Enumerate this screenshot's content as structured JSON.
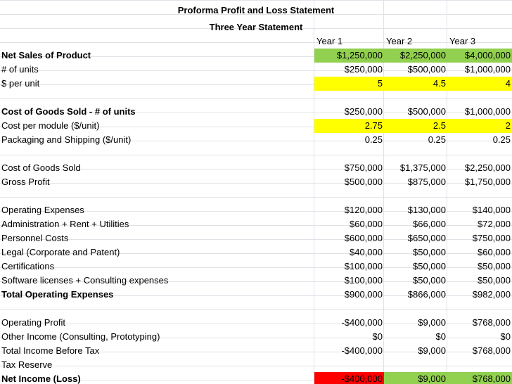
{
  "title": "Proforma Profit and Loss Statement",
  "subtitle": "Three Year Statement",
  "years": [
    "Year 1",
    "Year 2",
    "Year 3"
  ],
  "rows": [
    {
      "label": "Net Sales of Product",
      "bold": true,
      "values": [
        "$1,250,000",
        "$2,250,000",
        "$4,000,000"
      ],
      "fills": [
        "#92d050",
        "#92d050",
        "#92d050"
      ]
    },
    {
      "label": "# of units",
      "bold": false,
      "values": [
        "$250,000",
        "$500,000",
        "$1,000,000"
      ],
      "fills": [
        "",
        "",
        ""
      ]
    },
    {
      "label": "$ per unit",
      "bold": false,
      "values": [
        "5",
        "4.5",
        "4"
      ],
      "fills": [
        "#ffff00",
        "#ffff00",
        "#ffff00"
      ]
    },
    {
      "label": "",
      "bold": false,
      "values": [
        "",
        "",
        ""
      ],
      "fills": [
        "",
        "",
        ""
      ]
    },
    {
      "label": "Cost of Goods Sold - # of units",
      "bold": true,
      "values": [
        "$250,000",
        "$500,000",
        "$1,000,000"
      ],
      "fills": [
        "",
        "",
        ""
      ]
    },
    {
      "label": "Cost per module ($/unit)",
      "bold": false,
      "values": [
        "2.75",
        "2.5",
        "2"
      ],
      "fills": [
        "#ffff00",
        "#ffff00",
        "#ffff00"
      ]
    },
    {
      "label": "Packaging and Shipping ($/unit)",
      "bold": false,
      "values": [
        "0.25",
        "0.25",
        "0.25"
      ],
      "fills": [
        "",
        "",
        ""
      ]
    },
    {
      "label": "",
      "bold": false,
      "values": [
        "",
        "",
        ""
      ],
      "fills": [
        "",
        "",
        ""
      ]
    },
    {
      "label": "Cost of Goods Sold",
      "bold": false,
      "values": [
        "$750,000",
        "$1,375,000",
        "$2,250,000"
      ],
      "fills": [
        "",
        "",
        ""
      ]
    },
    {
      "label": "Gross Profit",
      "bold": false,
      "values": [
        "$500,000",
        "$875,000",
        "$1,750,000"
      ],
      "fills": [
        "",
        "",
        ""
      ]
    },
    {
      "label": "",
      "bold": false,
      "values": [
        "",
        "",
        ""
      ],
      "fills": [
        "",
        "",
        ""
      ]
    },
    {
      "label": "Operating Expenses",
      "bold": false,
      "values": [
        "$120,000",
        "$130,000",
        "$140,000"
      ],
      "fills": [
        "",
        "",
        ""
      ]
    },
    {
      "label": "Administration + Rent + Utilities",
      "bold": false,
      "values": [
        "$60,000",
        "$66,000",
        "$72,000"
      ],
      "fills": [
        "",
        "",
        ""
      ]
    },
    {
      "label": "Personnel Costs",
      "bold": false,
      "values": [
        "$600,000",
        "$650,000",
        "$750,000"
      ],
      "fills": [
        "",
        "",
        ""
      ]
    },
    {
      "label": "Legal (Corporate and Patent)",
      "bold": false,
      "values": [
        "$40,000",
        "$50,000",
        "$60,000"
      ],
      "fills": [
        "",
        "",
        ""
      ]
    },
    {
      "label": "Certifications",
      "bold": false,
      "values": [
        "$100,000",
        "$50,000",
        "$50,000"
      ],
      "fills": [
        "",
        "",
        ""
      ]
    },
    {
      "label": "Software licenses + Consulting expenses",
      "bold": false,
      "values": [
        "$100,000",
        "$50,000",
        "$50,000"
      ],
      "fills": [
        "",
        "",
        ""
      ]
    },
    {
      "label": "Total Operating Expenses",
      "bold": true,
      "values": [
        "$900,000",
        "$866,000",
        "$982,000"
      ],
      "fills": [
        "",
        "",
        ""
      ]
    },
    {
      "label": "",
      "bold": false,
      "values": [
        "",
        "",
        ""
      ],
      "fills": [
        "",
        "",
        ""
      ]
    },
    {
      "label": "Operating Profit",
      "bold": false,
      "values": [
        "-$400,000",
        "$9,000",
        "$768,000"
      ],
      "fills": [
        "",
        "",
        ""
      ]
    },
    {
      "label": "Other Income (Consulting, Prototyping)",
      "bold": false,
      "values": [
        "$0",
        "$0",
        "$0"
      ],
      "fills": [
        "",
        "",
        ""
      ]
    },
    {
      "label": "Total Income Before Tax",
      "bold": false,
      "values": [
        "-$400,000",
        "$9,000",
        "$768,000"
      ],
      "fills": [
        "",
        "",
        ""
      ]
    },
    {
      "label": "Tax Reserve",
      "bold": false,
      "values": [
        "",
        "",
        ""
      ],
      "fills": [
        "",
        "",
        ""
      ]
    },
    {
      "label": "Net Income (Loss)",
      "bold": true,
      "values": [
        "-$400,000",
        "$9,000",
        "$768,000"
      ],
      "fills": [
        "#ff0000",
        "#92d050",
        "#92d050"
      ]
    }
  ]
}
